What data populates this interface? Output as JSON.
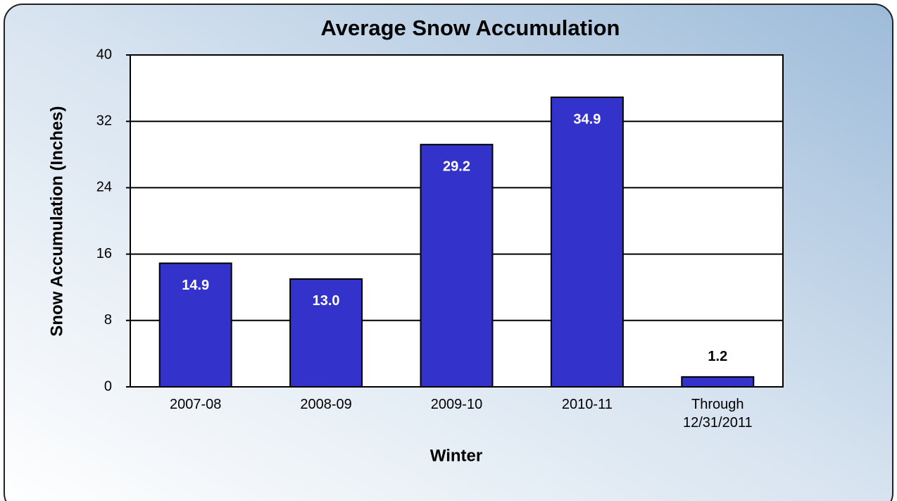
{
  "chart_data": {
    "type": "bar",
    "title": "Average Snow Accumulation",
    "x_label": "Winter",
    "y_label": "Snow Accumulation (Inches)",
    "categories": [
      "2007-08",
      "2008-09",
      "2009-10",
      "2010-11",
      "Through 12/31/2011"
    ],
    "values": [
      14.9,
      13.0,
      29.2,
      34.9,
      1.2
    ],
    "value_labels": [
      "14.9",
      "13.0",
      "29.2",
      "34.9",
      "1.2"
    ],
    "color": "#3333cc",
    "ylim": [
      0,
      40
    ],
    "yticks": [
      0,
      8,
      16,
      24,
      32,
      40
    ],
    "grid": true
  }
}
